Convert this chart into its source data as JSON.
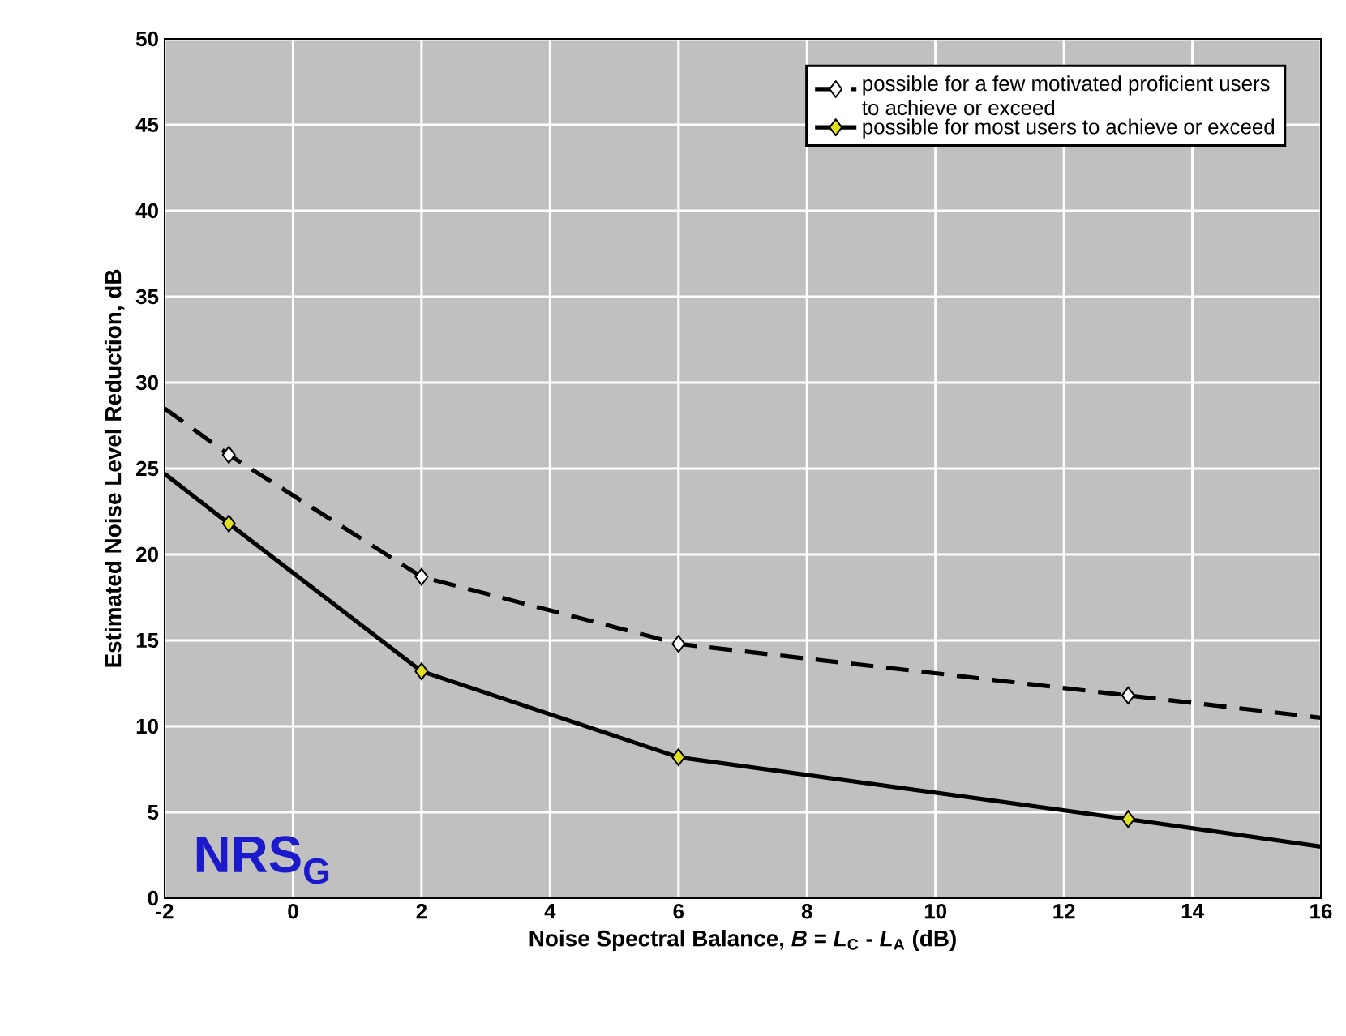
{
  "chart_data": {
    "type": "line",
    "xlabel": "Noise Spectral Balance, *B* = *L*$_{C}$ - *L*$_{A}$ (dB)",
    "ylabel": "Estimated Noise Level Reduction, dB",
    "xlim": [
      -2,
      16
    ],
    "xticks": [
      -2,
      0,
      2,
      4,
      6,
      8,
      10,
      12,
      14,
      16
    ],
    "ylim": [
      0,
      50
    ],
    "yticks": [
      0,
      5,
      10,
      15,
      20,
      25,
      30,
      35,
      40,
      45,
      50
    ],
    "grid": true,
    "legend": "top right",
    "marker": "diamond",
    "series": [
      {
        "name": "possible for a few motivated proficient users to achieve or exceed",
        "color": "#000000",
        "colors": [
          null,
          "#ffffff",
          "#ffffff",
          "#ffffff",
          "#ffffff",
          null
        ],
        "line_style": "dashed",
        "x": [
          -2,
          -1,
          2,
          6,
          13,
          16
        ],
        "values": [
          28.5,
          25.8,
          18.7,
          14.8,
          11.8,
          10.5
        ]
      },
      {
        "name": "possible for most users to achieve or exceed",
        "color": "#000000",
        "colors": [
          null,
          "#e0e020",
          "#e0e020",
          "#e0e020",
          "#e0e020",
          null
        ],
        "line_style": "solid",
        "x": [
          -2,
          -1,
          2,
          6,
          13,
          16
        ],
        "values": [
          24.7,
          21.8,
          13.2,
          8.2,
          4.6,
          3.0
        ]
      }
    ],
    "annotations": [
      "NRS$_{G}$"
    ]
  }
}
